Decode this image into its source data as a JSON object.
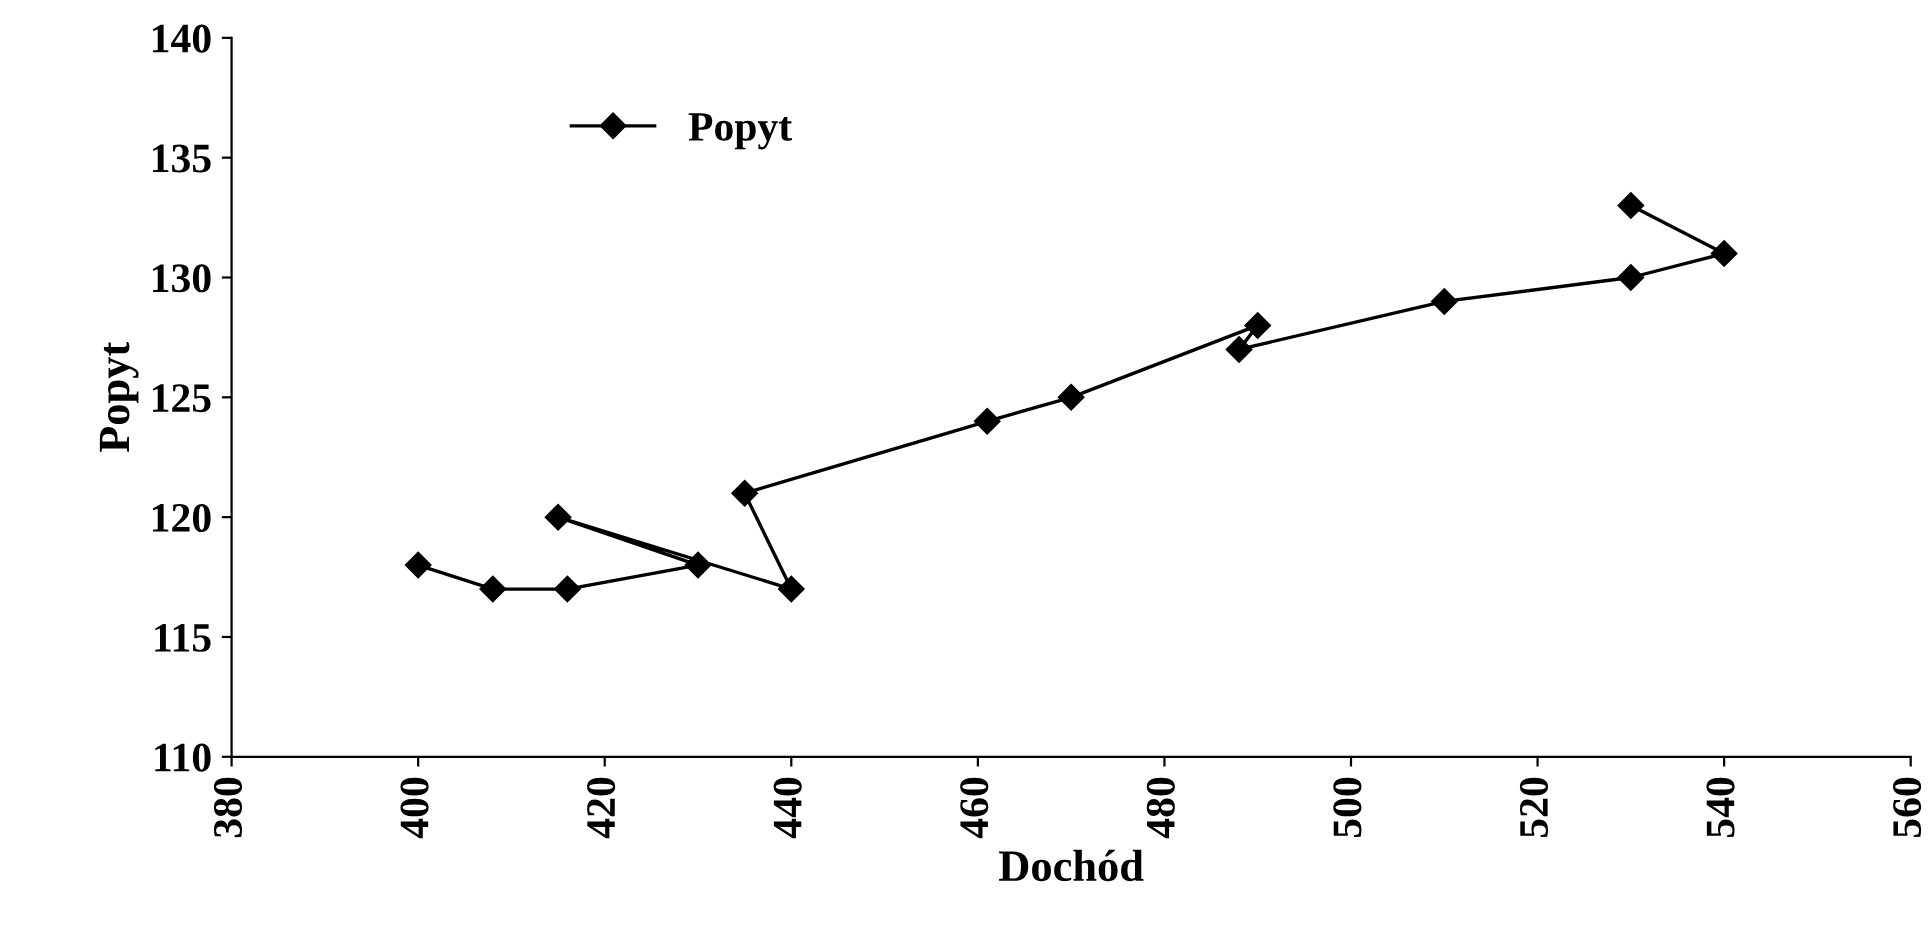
{
  "chart_data": {
    "type": "line",
    "xlabel": "Dochód",
    "ylabel": "Popyt",
    "series": [
      {
        "name": "Popyt",
        "color": "#000000",
        "x": [
          400,
          408,
          416,
          430,
          415,
          440,
          435,
          461,
          470,
          490,
          488,
          510,
          530,
          540,
          530
        ],
        "values": [
          118,
          117,
          117,
          118,
          120,
          117,
          121,
          124,
          125,
          128,
          127,
          129,
          130,
          131,
          133
        ]
      }
    ],
    "xlim": [
      380,
      560
    ],
    "xticks": [
      380,
      400,
      420,
      440,
      460,
      480,
      500,
      520,
      540,
      560
    ],
    "ylim": [
      110,
      140
    ],
    "yticks": [
      110,
      115,
      120,
      125,
      130,
      135,
      140
    ],
    "marker": "diamond",
    "line_style": "solid",
    "legend": "top left",
    "grid": false
  }
}
